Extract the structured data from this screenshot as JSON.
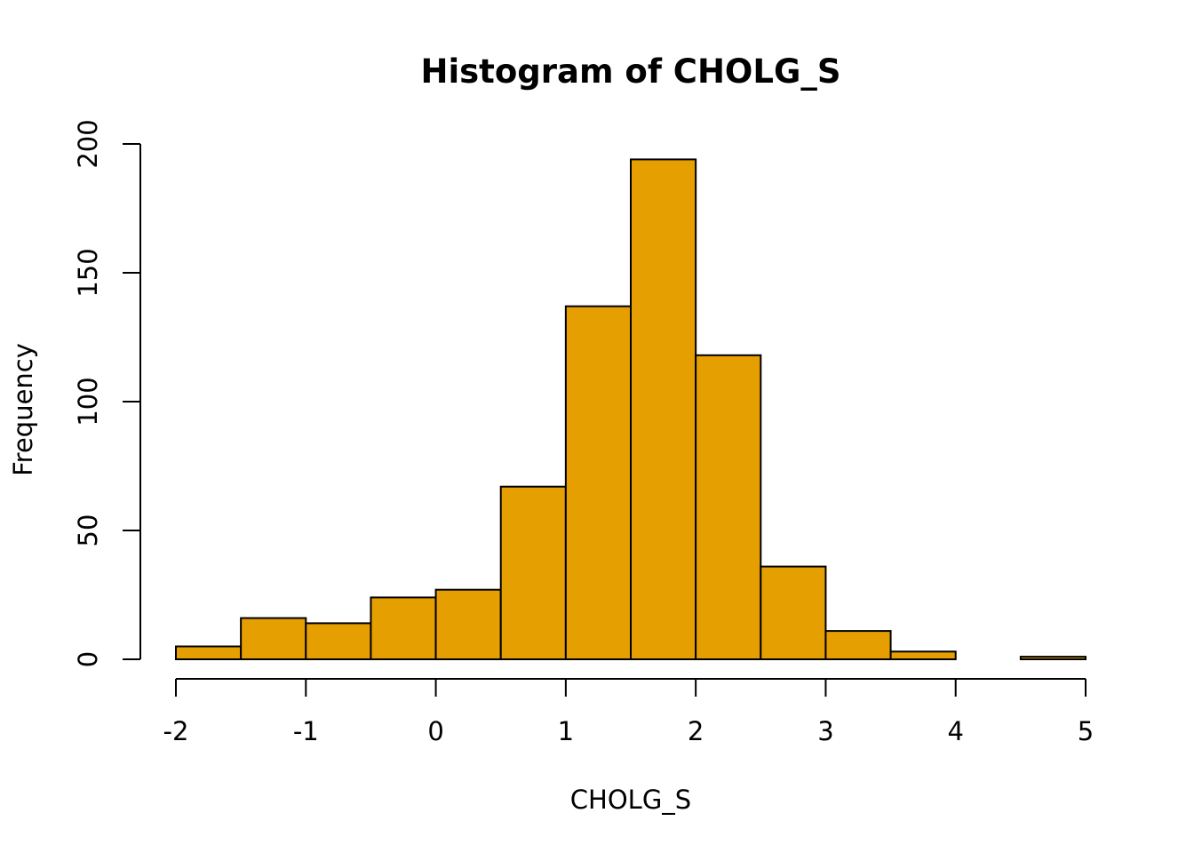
{
  "chart_data": {
    "type": "bar",
    "title": "Histogram of CHOLG_S",
    "xlabel": "CHOLG_S",
    "ylabel": "Frequency",
    "bin_edges": [
      -2,
      -1.5,
      -1,
      -0.5,
      0,
      0.5,
      1,
      1.5,
      2,
      2.5,
      3,
      3.5,
      4,
      4.5,
      5
    ],
    "values": [
      5,
      16,
      14,
      24,
      27,
      67,
      137,
      194,
      118,
      36,
      11,
      3,
      0,
      1
    ],
    "xlim": [
      -2,
      5
    ],
    "ylim": [
      0,
      200
    ],
    "x_ticks": [
      "-2",
      "-1",
      "0",
      "1",
      "2",
      "3",
      "4",
      "5"
    ],
    "y_ticks": [
      "0",
      "50",
      "100",
      "150",
      "200"
    ],
    "bar_color": "#E69F00",
    "edge_color": "#000000",
    "grid": false,
    "legend": "none"
  }
}
